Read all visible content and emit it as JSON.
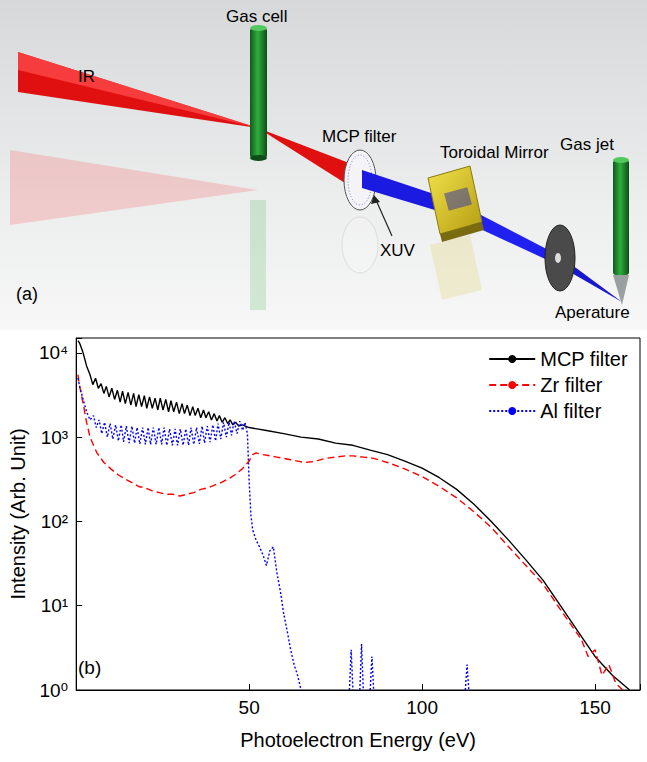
{
  "diagram": {
    "panel_label": "(a)",
    "labels": {
      "ir": "IR",
      "gas_cell": "Gas cell",
      "mcp_filter": "MCP filter",
      "toroidal_mirror": "Toroidal Mirror",
      "xuv": "XUV",
      "gas_jet": "Gas jet",
      "aperture": "Aperature"
    }
  },
  "chart_data": {
    "type": "line",
    "panel_label": "(b)",
    "x_label": "Photoelectron Energy (eV)",
    "y_label": "Intensity (Arb. Unit)",
    "xlim": [
      0,
      163
    ],
    "xticks": [
      50,
      100,
      150
    ],
    "ylim": [
      1,
      15000
    ],
    "yticks": [
      {
        "value": 1,
        "label": "10⁰"
      },
      {
        "value": 10,
        "label": "10¹"
      },
      {
        "value": 100,
        "label": "10²"
      },
      {
        "value": 1000,
        "label": "10³"
      },
      {
        "value": 10000,
        "label": "10⁴"
      }
    ],
    "log": "y",
    "grid": false,
    "legend": "upper right",
    "series": [
      {
        "name": "MCP filter",
        "color": "#000000",
        "line_style": "solid",
        "x": [
          0.5,
          1,
          2,
          3,
          4,
          4.8,
          5.6,
          6.4,
          7.2,
          8,
          8.7,
          9.5,
          10.3,
          11.1,
          11.9,
          12.7,
          13.4,
          14.2,
          15,
          15.8,
          16.6,
          17.3,
          18.1,
          18.9,
          19.7,
          20.4,
          21.2,
          22,
          22.8,
          23.6,
          24.3,
          25.1,
          25.9,
          26.7,
          27.4,
          28.2,
          29,
          29.8,
          30.6,
          31.3,
          32.1,
          32.9,
          33.7,
          34.4,
          35.2,
          36,
          36.8,
          37.5,
          38.3,
          39.1,
          39.9,
          40.7,
          41.4,
          42.2,
          43,
          43.8,
          44.5,
          45.3,
          46.1,
          47,
          48,
          50,
          55,
          60,
          65,
          70,
          75,
          80,
          85,
          90,
          95,
          100,
          105,
          110,
          115,
          120,
          125,
          130,
          135,
          140,
          145,
          150,
          155,
          160
        ],
        "values": [
          14000,
          13000,
          10000,
          7000,
          5500,
          4200,
          5000,
          3800,
          4300,
          3300,
          4000,
          3000,
          3800,
          2800,
          3600,
          2600,
          3500,
          2500,
          3400,
          2400,
          3300,
          2300,
          3200,
          2300,
          3100,
          2200,
          3000,
          2200,
          2900,
          2100,
          2900,
          2100,
          2800,
          2000,
          2700,
          2000,
          2600,
          1900,
          2500,
          1900,
          2400,
          1800,
          2300,
          1800,
          2200,
          1700,
          2100,
          1700,
          2000,
          1600,
          1900,
          1550,
          1800,
          1500,
          1700,
          1450,
          1600,
          1400,
          1500,
          1350,
          1400,
          1300,
          1200,
          1100,
          1000,
          950,
          850,
          800,
          700,
          620,
          520,
          430,
          330,
          240,
          160,
          100,
          60,
          35,
          20,
          10,
          5,
          2.5,
          1.5,
          1
        ]
      },
      {
        "name": "Zr filter",
        "color": "#ff0000",
        "line_style": "dashed",
        "x": [
          0.5,
          1,
          2,
          3,
          4,
          5,
          6,
          8,
          10,
          12,
          14,
          16,
          18,
          20,
          22,
          24,
          26,
          28,
          30,
          32,
          34,
          36,
          38,
          40,
          42,
          44,
          46,
          48,
          50,
          51,
          52,
          54,
          56,
          58,
          60,
          62,
          64,
          66,
          68,
          70,
          72,
          75,
          78,
          80,
          83,
          86,
          90,
          95,
          100,
          105,
          110,
          115,
          120,
          125,
          130,
          135,
          140,
          143,
          146,
          148,
          150,
          152,
          154,
          156,
          158
        ],
        "values": [
          5500,
          4000,
          2500,
          1500,
          1000,
          800,
          650,
          500,
          420,
          360,
          320,
          290,
          260,
          250,
          230,
          220,
          210,
          210,
          200,
          210,
          220,
          240,
          250,
          270,
          290,
          320,
          360,
          420,
          520,
          620,
          650,
          620,
          600,
          580,
          560,
          540,
          520,
          500,
          510,
          530,
          560,
          580,
          600,
          600,
          580,
          560,
          500,
          420,
          340,
          260,
          190,
          130,
          85,
          50,
          30,
          18,
          9,
          6,
          4,
          2.5,
          3,
          1.5,
          2,
          1.2,
          1
        ]
      },
      {
        "name": "Al filter",
        "color": "#0000ff",
        "line_style": "dotted",
        "x": [
          0.5,
          1,
          2,
          3,
          4,
          5,
          5.8,
          6.6,
          7.4,
          8.2,
          9,
          9.8,
          10.6,
          11.4,
          12.2,
          13,
          13.7,
          14.5,
          15.3,
          16.1,
          16.9,
          17.6,
          18.4,
          19.2,
          20,
          20.8,
          21.5,
          22.3,
          23.1,
          23.9,
          24.7,
          25.4,
          26.2,
          27,
          27.8,
          28.6,
          29.3,
          30.1,
          30.9,
          31.7,
          32.5,
          33.2,
          34,
          34.8,
          35.6,
          36.4,
          37.1,
          37.9,
          38.7,
          39.5,
          40.3,
          41,
          41.8,
          42.6,
          43.4,
          44.2,
          44.9,
          45.7,
          46.5,
          47.3,
          48.1,
          48.8,
          49.5,
          50,
          50.5,
          51,
          52,
          53,
          54,
          55,
          56,
          57,
          58,
          59,
          60,
          61,
          62,
          63,
          64,
          65,
          70,
          79,
          79.5,
          80,
          80.5,
          82,
          82.5,
          83,
          83.5,
          85,
          85.5,
          86,
          90,
          112.5,
          113,
          113.5
        ],
        "values": [
          5000,
          4000,
          2800,
          2000,
          1600,
          1800,
          1300,
          1600,
          1100,
          1500,
          1000,
          1450,
          950,
          1400,
          900,
          1400,
          880,
          1350,
          850,
          1350,
          850,
          1300,
          830,
          1300,
          820,
          1300,
          820,
          1300,
          820,
          1300,
          820,
          1300,
          800,
          1250,
          800,
          1250,
          800,
          1250,
          800,
          1250,
          800,
          1300,
          820,
          1300,
          830,
          1350,
          850,
          1350,
          870,
          1400,
          900,
          1450,
          950,
          1500,
          1000,
          1500,
          1050,
          1550,
          1100,
          1550,
          1200,
          1500,
          1100,
          300,
          120,
          80,
          60,
          50,
          40,
          30,
          45,
          50,
          25,
          15,
          8,
          5,
          3,
          2,
          1.5,
          1,
          null,
          1,
          3,
          1,
          null,
          1,
          3.5,
          1,
          null,
          1,
          2.5,
          1,
          null,
          1,
          2,
          1
        ]
      }
    ]
  }
}
